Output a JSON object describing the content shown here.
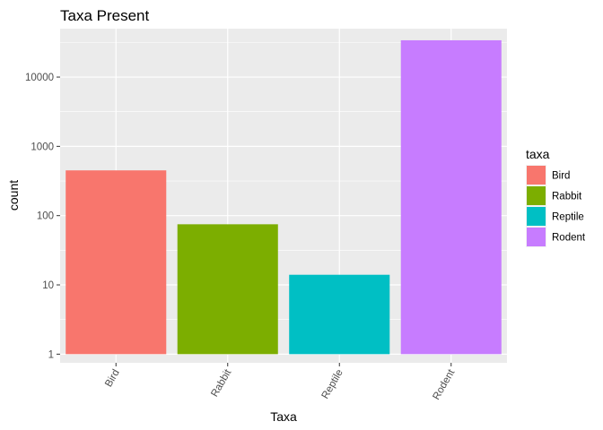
{
  "chart_data": {
    "type": "bar",
    "title": "Taxa Present",
    "xlabel": "Taxa",
    "ylabel": "count",
    "categories": [
      "Bird",
      "Rabbit",
      "Reptile",
      "Rodent"
    ],
    "values": [
      450,
      75,
      14,
      34000
    ],
    "colors": [
      "#F8766D",
      "#7CAE00",
      "#00BFC4",
      "#C77CFF"
    ],
    "y_scale": "log10",
    "ylim": [
      0.75,
      50000
    ],
    "y_ticks": [
      1,
      10,
      100,
      1000,
      10000
    ],
    "y_tick_labels": [
      "1",
      "10",
      "100",
      "1000",
      "10000"
    ],
    "x_tick_rotation": "-60deg",
    "grid": true,
    "background": "#EBEBEB",
    "legend": {
      "title": "taxa",
      "position": "right",
      "entries": [
        "Bird",
        "Rabbit",
        "Reptile",
        "Rodent"
      ]
    }
  }
}
